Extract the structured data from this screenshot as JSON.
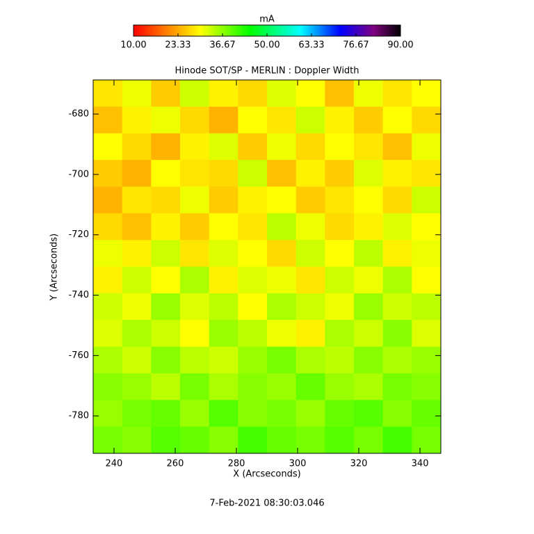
{
  "chart_data": {
    "type": "heatmap",
    "title": "Hinode SOT/SP - MERLIN : Doppler Width",
    "x_label": "X (Arcseconds)",
    "y_label": "Y (Arcseconds)",
    "footer": "7-Feb-2021 08:30:03.046",
    "colorbar_label": "mA",
    "clim": [
      10,
      90
    ],
    "colorbar_ticks": [
      {
        "value": 10,
        "label": "10.00"
      },
      {
        "value": 23.33,
        "label": "23.33"
      },
      {
        "value": 36.67,
        "label": "36.67"
      },
      {
        "value": 50,
        "label": "50.00"
      },
      {
        "value": 63.33,
        "label": "63.33"
      },
      {
        "value": 76.67,
        "label": "76.67"
      },
      {
        "value": 90,
        "label": "90.00"
      }
    ],
    "colorscale": [
      [
        10,
        "#ff0000"
      ],
      [
        20,
        "#ff8000"
      ],
      [
        30,
        "#ffff00"
      ],
      [
        45,
        "#00ff00"
      ],
      [
        60,
        "#00ffff"
      ],
      [
        72,
        "#0000ff"
      ],
      [
        82,
        "#800080"
      ],
      [
        90,
        "#000000"
      ]
    ],
    "xlim": [
      233.2,
      346.8
    ],
    "ylim": [
      -668.7,
      -792.4
    ],
    "xticks": [
      240,
      260,
      280,
      300,
      320,
      340
    ],
    "yticks": [
      -680,
      -700,
      -720,
      -740,
      -760,
      -780
    ],
    "z": [
      [
        28,
        31,
        26,
        33,
        29,
        27,
        32,
        30,
        25,
        31,
        28,
        30
      ],
      [
        25,
        29,
        31,
        27,
        24,
        30,
        28,
        33,
        29,
        26,
        30,
        27
      ],
      [
        30,
        27,
        24,
        29,
        32,
        26,
        31,
        27,
        30,
        28,
        25,
        31
      ],
      [
        26,
        24,
        30,
        28,
        27,
        33,
        25,
        29,
        26,
        32,
        29,
        28
      ],
      [
        24,
        28,
        27,
        31,
        26,
        29,
        30,
        26,
        28,
        30,
        27,
        33
      ],
      [
        27,
        25,
        29,
        26,
        30,
        28,
        34,
        31,
        27,
        29,
        32,
        30
      ],
      [
        31,
        29,
        33,
        28,
        32,
        30,
        27,
        33,
        30,
        34,
        29,
        31
      ],
      [
        29,
        33,
        30,
        35,
        29,
        32,
        31,
        28,
        33,
        31,
        35,
        30
      ],
      [
        33,
        31,
        36,
        32,
        34,
        30,
        35,
        33,
        31,
        36,
        33,
        34
      ],
      [
        32,
        35,
        33,
        30,
        36,
        34,
        31,
        29,
        35,
        33,
        37,
        32
      ],
      [
        35,
        33,
        37,
        34,
        33,
        36,
        38,
        35,
        34,
        37,
        35,
        36
      ],
      [
        37,
        36,
        34,
        38,
        35,
        37,
        36,
        39,
        36,
        35,
        38,
        37
      ],
      [
        36,
        38,
        39,
        36,
        40,
        37,
        38,
        36,
        39,
        40,
        37,
        39
      ],
      [
        38,
        37,
        40,
        39,
        37,
        41,
        39,
        38,
        40,
        38,
        41,
        38
      ]
    ]
  }
}
